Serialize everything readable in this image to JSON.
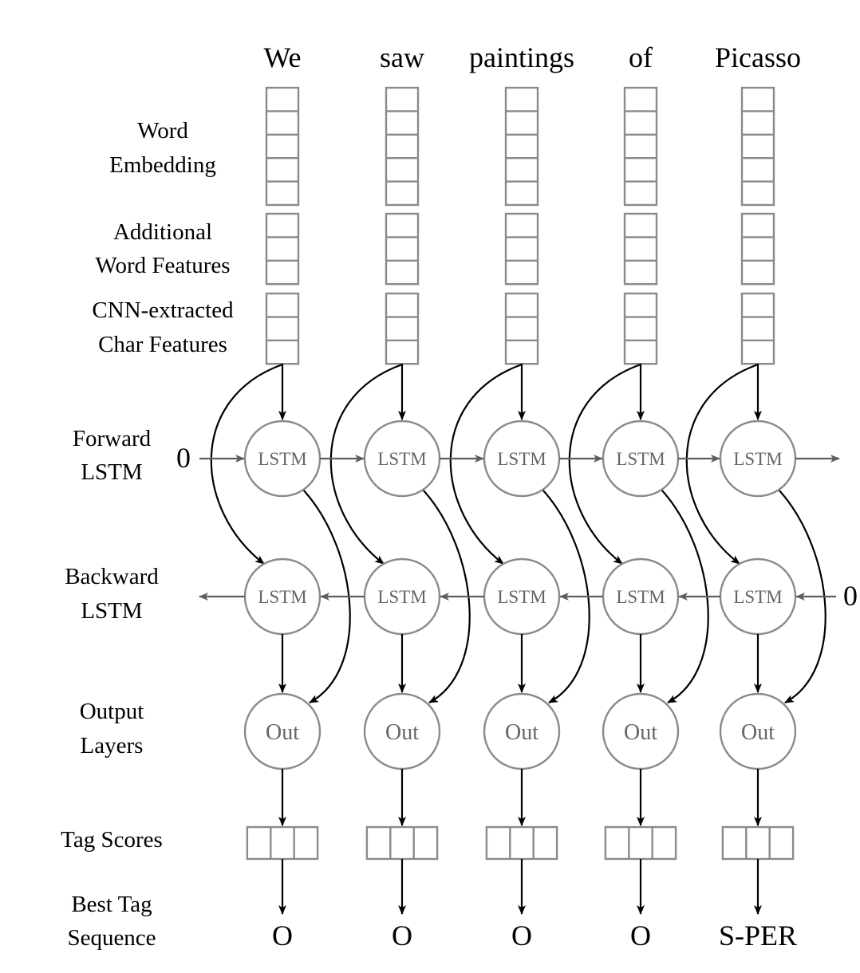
{
  "words": [
    "We",
    "saw",
    "paintings",
    "of",
    "Picasso"
  ],
  "row_labels": {
    "word_embedding": [
      "Word",
      "Embedding"
    ],
    "additional_features": [
      "Additional",
      "Word Features"
    ],
    "char_features": [
      "CNN-extracted",
      "Char Features"
    ],
    "forward_lstm": [
      "Forward",
      "LSTM"
    ],
    "backward_lstm": [
      "Backward",
      "LSTM"
    ],
    "output_layers": [
      "Output",
      "Layers"
    ],
    "tag_scores": [
      "Tag Scores"
    ],
    "best_tag": [
      "Best Tag",
      "Sequence"
    ]
  },
  "node_labels": {
    "lstm": "LSTM",
    "out": "Out"
  },
  "initial_states": {
    "forward": "0",
    "backward": "0"
  },
  "tags": [
    "O",
    "O",
    "O",
    "O",
    "S-PER"
  ],
  "vectors": {
    "word_embedding_cells": 5,
    "additional_feature_cells": 3,
    "char_feature_cells": 3,
    "tag_score_cells": 3
  },
  "colors": {
    "node_stroke": "#8a8a8a",
    "flow_arrow": "#5e5e5e",
    "skip_arrow": "#000000",
    "node_text": "#666666"
  }
}
